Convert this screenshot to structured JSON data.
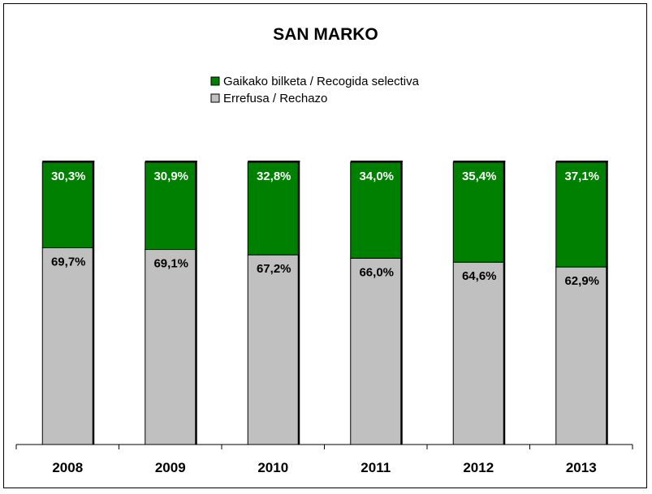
{
  "chart_data": {
    "type": "bar",
    "stacked": true,
    "title": "SAN MARKO",
    "xlabel": "",
    "ylabel": "",
    "ylim": [
      0,
      100
    ],
    "grid": false,
    "legend_position": "top-center",
    "categories": [
      "2008",
      "2009",
      "2010",
      "2011",
      "2012",
      "2013"
    ],
    "series": [
      {
        "name": "Errefusa / Rechazo",
        "color": "#c0c0c0",
        "label_color": "#000000",
        "values": [
          69.7,
          69.1,
          67.2,
          66.0,
          64.6,
          62.9
        ],
        "labels": [
          "69,7%",
          "69,1%",
          "67,2%",
          "66,0%",
          "64,6%",
          "62,9%"
        ]
      },
      {
        "name": "Gaikako bilketa / Recogida selectiva",
        "color": "#008000",
        "label_color": "#ffffff",
        "values": [
          30.3,
          30.9,
          32.8,
          34.0,
          35.4,
          37.1
        ],
        "labels": [
          "30,3%",
          "30,9%",
          "32,8%",
          "34,0%",
          "35,4%",
          "37,1%"
        ]
      }
    ],
    "legend": [
      {
        "label": "Gaikako bilketa / Recogida selectiva",
        "color": "#008000"
      },
      {
        "label": "Errefusa / Rechazo",
        "color": "#c0c0c0"
      }
    ]
  }
}
